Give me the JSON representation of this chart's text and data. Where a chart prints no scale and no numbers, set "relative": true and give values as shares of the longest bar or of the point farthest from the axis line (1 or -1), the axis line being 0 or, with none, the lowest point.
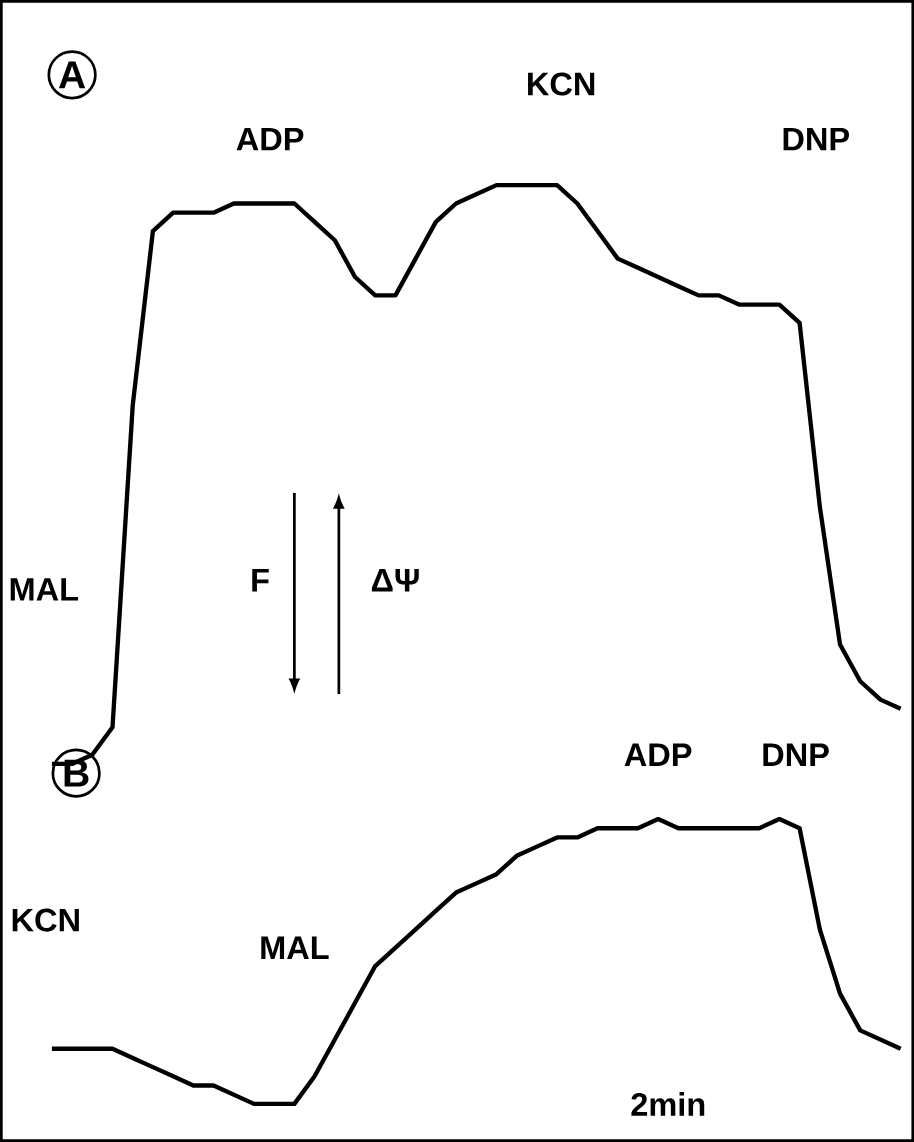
{
  "chart_data": {
    "type": "line",
    "relative": true,
    "categories": [
      null,
      null,
      null,
      null,
      null,
      null,
      null,
      null,
      null,
      null,
      null,
      null,
      null,
      null,
      null,
      null,
      null,
      null,
      null,
      null,
      null,
      null,
      null,
      null,
      null,
      null,
      null,
      null,
      null,
      null,
      null,
      null,
      null,
      null,
      null,
      null,
      null,
      null,
      null,
      null,
      null,
      null,
      null
    ],
    "series": [
      {
        "color": "#000000",
        "values": [
          0.37,
          0.37,
          0.38,
          0.41,
          0.76,
          0.95,
          0.97,
          0.97,
          0.97,
          0.98,
          0.98,
          0.98,
          0.98,
          0.96,
          0.94,
          0.9,
          0.88,
          0.88,
          0.92,
          0.96,
          0.98,
          0.99,
          1.0,
          1.0,
          1.0,
          1.0,
          0.98,
          0.95,
          0.92,
          0.91,
          0.9,
          0.89,
          0.88,
          0.88,
          0.87,
          0.87,
          0.87,
          0.85,
          0.65,
          0.5,
          0.46,
          0.44,
          0.43
        ]
      },
      {
        "color": "#000000",
        "values": [
          0.06,
          0.06,
          0.06,
          0.06,
          0.05,
          0.04,
          0.03,
          0.02,
          0.02,
          0.01,
          0.0,
          0.0,
          0.0,
          0.03,
          0.07,
          0.11,
          0.15,
          0.17,
          0.19,
          0.21,
          0.23,
          0.24,
          0.25,
          0.27,
          0.28,
          0.29,
          0.29,
          0.3,
          0.3,
          0.3,
          0.31,
          0.3,
          0.3,
          0.3,
          0.3,
          0.3,
          0.31,
          0.3,
          0.19,
          0.12,
          0.08,
          0.07,
          0.06
        ]
      }
    ],
    "annotations": [
      "A",
      "B",
      "ADP",
      "KCN",
      "DNP",
      "MAL",
      "F",
      "ΔΨ",
      "KCN",
      "MAL",
      "ADP",
      "DNP",
      "2min"
    ]
  }
}
